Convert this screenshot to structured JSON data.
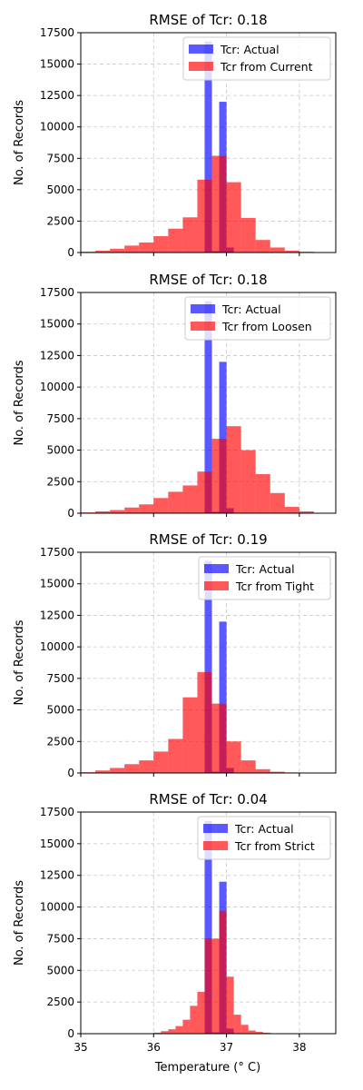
{
  "figure": {
    "xlabel": "Temperature (° C)",
    "ylabel": "No. of Records"
  },
  "colors": {
    "actual": "#0000ff",
    "predicted": "#ff0000",
    "grid": "#c8c8c8"
  },
  "chart_data": [
    {
      "type": "bar",
      "title": "RMSE of Tcr: 0.18",
      "xlim": [
        35,
        38.5
      ],
      "ylim": [
        0,
        17500
      ],
      "xticks": [
        "35",
        "36",
        "37",
        "38"
      ],
      "yticks": [
        "0",
        "2500",
        "5000",
        "7500",
        "10000",
        "12500",
        "15000",
        "17500"
      ],
      "grid": true,
      "legend": "top-right",
      "series": [
        {
          "name": "Tcr: Actual",
          "bin_width": 0.1,
          "bins": [
            [
              36.7,
              16800
            ],
            [
              36.8,
              100
            ],
            [
              36.9,
              12000
            ],
            [
              37.0,
              400
            ]
          ]
        },
        {
          "name": "Tcr from Current",
          "bin_width": 0.2,
          "bins": [
            [
              35.0,
              60
            ],
            [
              35.2,
              150
            ],
            [
              35.4,
              300
            ],
            [
              35.6,
              550
            ],
            [
              35.8,
              800
            ],
            [
              36.0,
              1300
            ],
            [
              36.2,
              1900
            ],
            [
              36.4,
              2800
            ],
            [
              36.6,
              5800
            ],
            [
              36.8,
              7700
            ],
            [
              37.0,
              5600
            ],
            [
              37.2,
              2750
            ],
            [
              37.4,
              1000
            ],
            [
              37.6,
              400
            ],
            [
              37.8,
              150
            ],
            [
              38.0,
              60
            ]
          ]
        }
      ]
    },
    {
      "type": "bar",
      "title": "RMSE of Tcr: 0.18",
      "xlim": [
        35,
        38.5
      ],
      "ylim": [
        0,
        17500
      ],
      "xticks": [
        "35",
        "36",
        "37",
        "38"
      ],
      "yticks": [
        "0",
        "2500",
        "5000",
        "7500",
        "10000",
        "12500",
        "15000",
        "17500"
      ],
      "grid": true,
      "legend": "top-right",
      "series": [
        {
          "name": "Tcr: Actual",
          "bin_width": 0.1,
          "bins": [
            [
              36.7,
              16800
            ],
            [
              36.8,
              100
            ],
            [
              36.9,
              12000
            ],
            [
              37.0,
              400
            ]
          ]
        },
        {
          "name": "Tcr from Loosen",
          "bin_width": 0.2,
          "bins": [
            [
              35.0,
              60
            ],
            [
              35.2,
              150
            ],
            [
              35.4,
              250
            ],
            [
              35.6,
              450
            ],
            [
              35.8,
              700
            ],
            [
              36.0,
              1200
            ],
            [
              36.2,
              1700
            ],
            [
              36.4,
              2200
            ],
            [
              36.6,
              3300
            ],
            [
              36.8,
              5900
            ],
            [
              37.0,
              6900
            ],
            [
              37.2,
              5000
            ],
            [
              37.4,
              3100
            ],
            [
              37.6,
              1600
            ],
            [
              37.8,
              500
            ],
            [
              38.0,
              150
            ]
          ]
        }
      ]
    },
    {
      "type": "bar",
      "title": "RMSE of Tcr: 0.19",
      "xlim": [
        35,
        38.5
      ],
      "ylim": [
        0,
        17500
      ],
      "xticks": [
        "35",
        "36",
        "37",
        "38"
      ],
      "yticks": [
        "0",
        "2500",
        "5000",
        "7500",
        "10000",
        "12500",
        "15000",
        "17500"
      ],
      "grid": true,
      "legend": "top-right",
      "series": [
        {
          "name": "Tcr: Actual",
          "bin_width": 0.1,
          "bins": [
            [
              36.7,
              16800
            ],
            [
              36.8,
              100
            ],
            [
              36.9,
              12000
            ],
            [
              37.0,
              400
            ]
          ]
        },
        {
          "name": "Tcr from Tight",
          "bin_width": 0.2,
          "bins": [
            [
              35.0,
              60
            ],
            [
              35.2,
              200
            ],
            [
              35.4,
              400
            ],
            [
              35.6,
              700
            ],
            [
              35.8,
              1000
            ],
            [
              36.0,
              1700
            ],
            [
              36.2,
              2700
            ],
            [
              36.4,
              6000
            ],
            [
              36.6,
              8000
            ],
            [
              36.8,
              5500
            ],
            [
              37.0,
              2500
            ],
            [
              37.2,
              1000
            ],
            [
              37.4,
              300
            ],
            [
              37.6,
              100
            ],
            [
              37.8,
              40
            ]
          ]
        }
      ]
    },
    {
      "type": "bar",
      "title": "RMSE of Tcr: 0.04",
      "xlim": [
        35,
        38.5
      ],
      "ylim": [
        0,
        17500
      ],
      "xticks": [
        "35",
        "36",
        "37",
        "38"
      ],
      "yticks": [
        "0",
        "2500",
        "5000",
        "7500",
        "10000",
        "12500",
        "15000",
        "17500"
      ],
      "grid": true,
      "legend": "top-right",
      "series": [
        {
          "name": "Tcr: Actual",
          "bin_width": 0.1,
          "bins": [
            [
              36.7,
              16800
            ],
            [
              36.8,
              100
            ],
            [
              36.9,
              12000
            ],
            [
              37.0,
              400
            ]
          ]
        },
        {
          "name": "Tcr from Strict",
          "bin_width": 0.1,
          "bins": [
            [
              36.0,
              80
            ],
            [
              36.1,
              200
            ],
            [
              36.2,
              350
            ],
            [
              36.3,
              600
            ],
            [
              36.4,
              1100
            ],
            [
              36.5,
              2200
            ],
            [
              36.6,
              3300
            ],
            [
              36.7,
              7500
            ],
            [
              36.8,
              7500
            ],
            [
              36.9,
              9700
            ],
            [
              37.0,
              4500
            ],
            [
              37.1,
              1500
            ],
            [
              37.2,
              700
            ],
            [
              37.3,
              250
            ],
            [
              37.4,
              150
            ],
            [
              37.5,
              80
            ]
          ]
        }
      ]
    }
  ]
}
